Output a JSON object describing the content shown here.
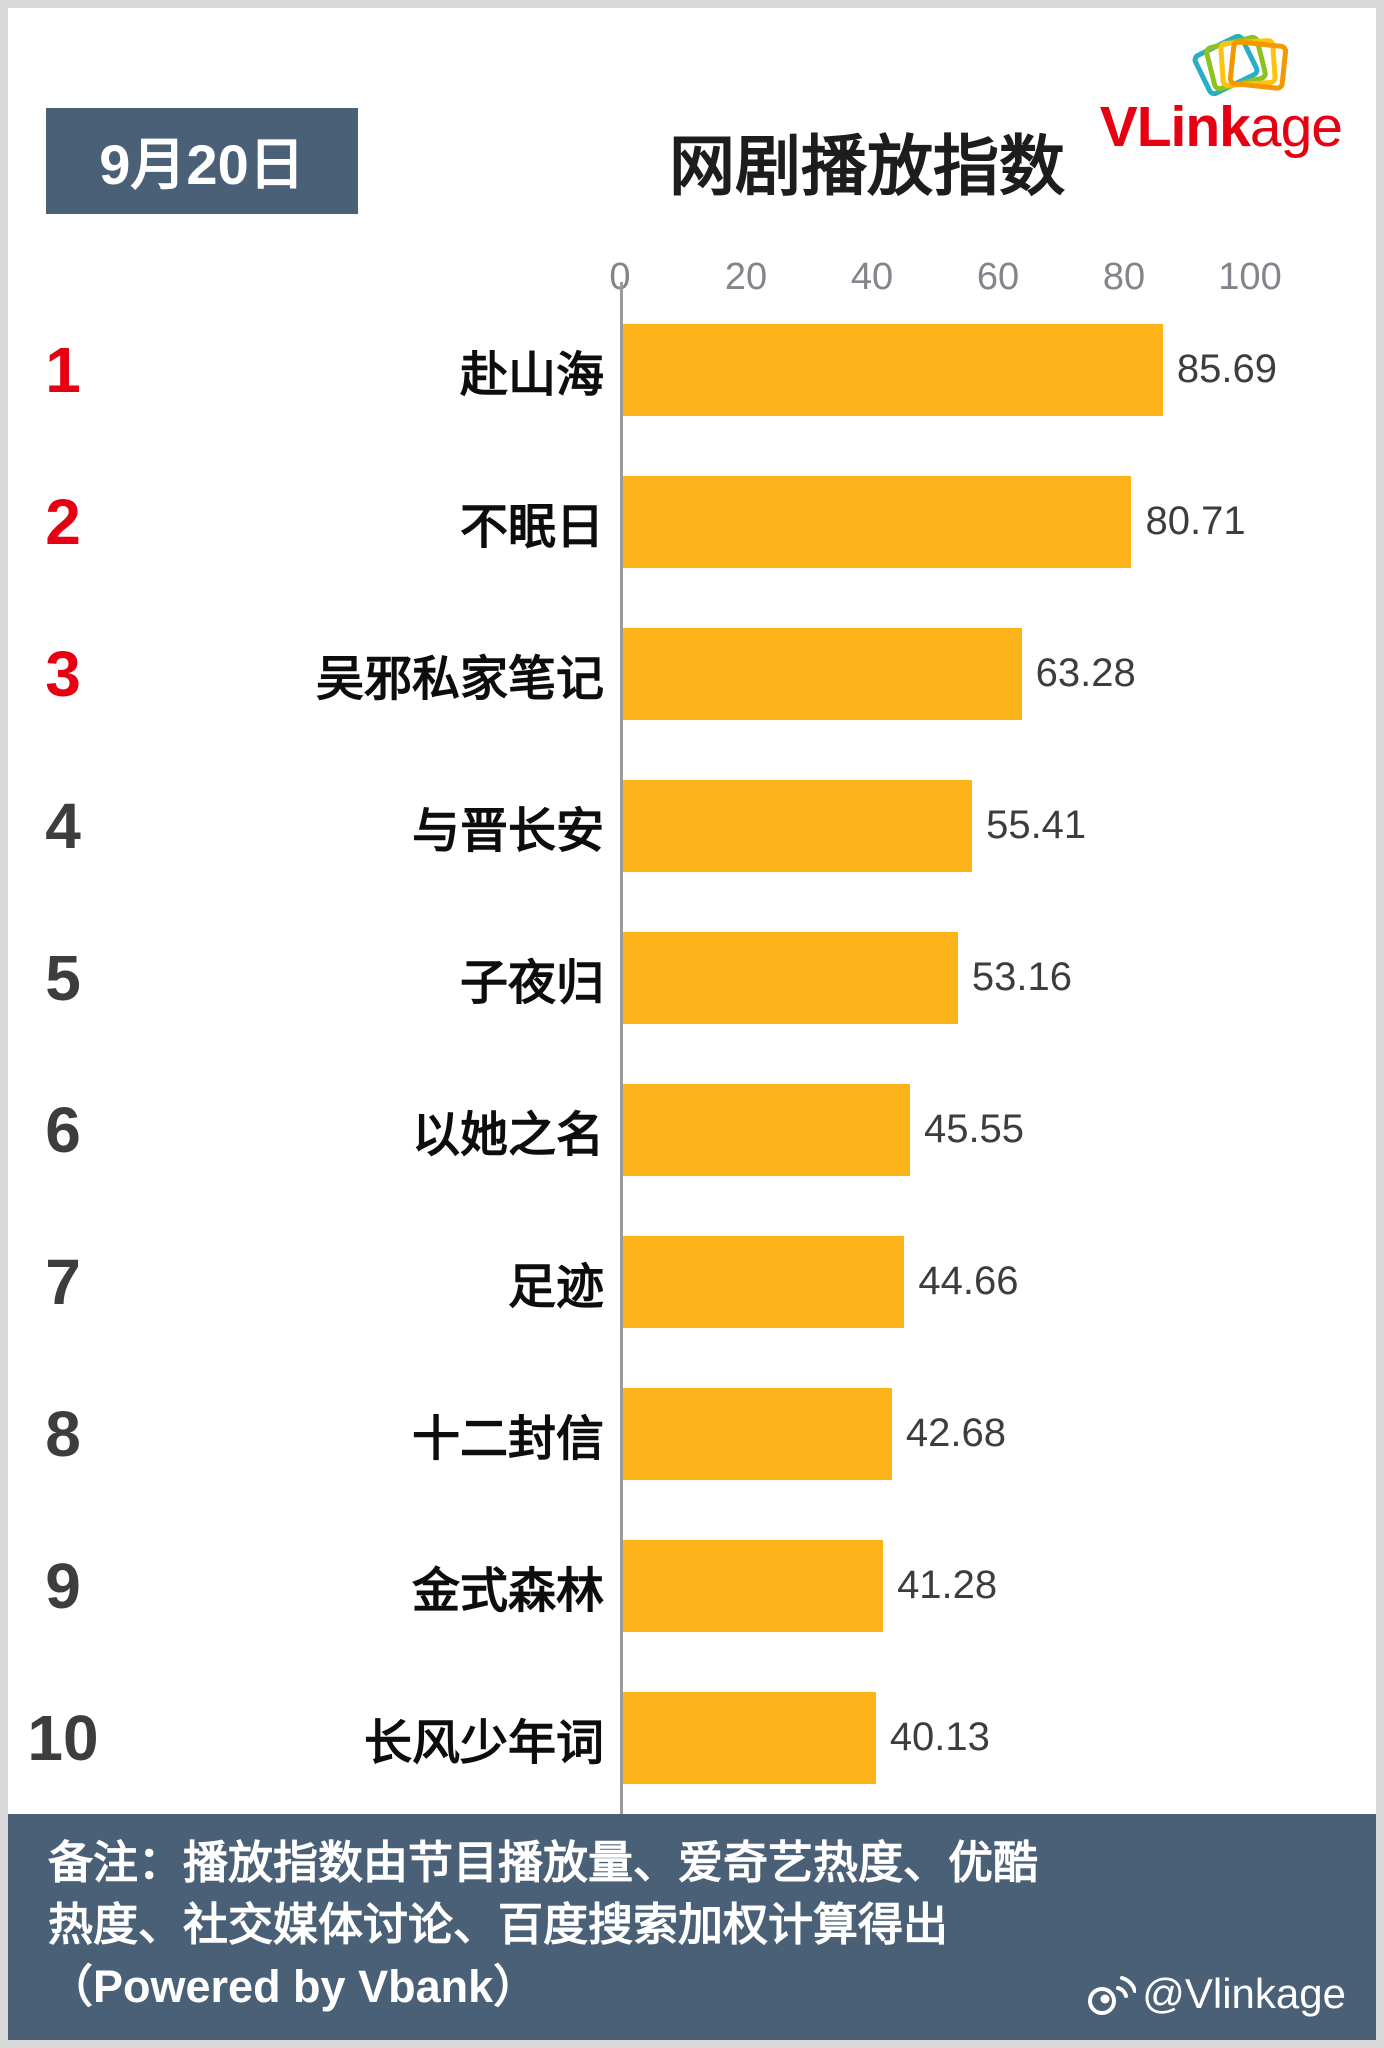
{
  "brand": {
    "logo_bold": "VLink",
    "logo_light": "age",
    "logo_color": "#e60012",
    "icon": "card-stack-icon"
  },
  "header": {
    "date_badge": "9月20日",
    "title": "网剧播放指数"
  },
  "colors": {
    "bar": "#fdb41a",
    "slate": "#4a6076",
    "accent_red": "#e60012",
    "rank_gray": "#3d3d3d",
    "tick_gray": "#84848c"
  },
  "chart_data": {
    "type": "bar",
    "orientation": "horizontal",
    "title": "网剧播放指数",
    "date": "9月20日",
    "xlabel": "",
    "ylabel": "",
    "xlim": [
      0,
      100
    ],
    "axis_ticks": [
      0,
      20,
      40,
      60,
      80,
      100
    ],
    "grid": false,
    "legend": "none",
    "bar_color": "#fdb41a",
    "items": [
      {
        "rank": 1,
        "name": "赴山海",
        "value": 85.69
      },
      {
        "rank": 2,
        "name": "不眠日",
        "value": 80.71
      },
      {
        "rank": 3,
        "name": "吴邪私家笔记",
        "value": 63.28
      },
      {
        "rank": 4,
        "name": "与晋长安",
        "value": 55.41
      },
      {
        "rank": 5,
        "name": "子夜归",
        "value": 53.16
      },
      {
        "rank": 6,
        "name": "以她之名",
        "value": 45.55
      },
      {
        "rank": 7,
        "name": "足迹",
        "value": 44.66
      },
      {
        "rank": 8,
        "name": "十二封信",
        "value": 42.68
      },
      {
        "rank": 9,
        "name": "金式森林",
        "value": 41.28
      },
      {
        "rank": 10,
        "name": "长风少年词",
        "value": 40.13
      }
    ]
  },
  "footer": {
    "note": "备注：播放指数由节目播放量、爱奇艺热度、优酷热度、社交媒体讨论、百度搜索加权计算得出（Powered by Vbank）",
    "weibo_handle": "@Vlinkage"
  }
}
